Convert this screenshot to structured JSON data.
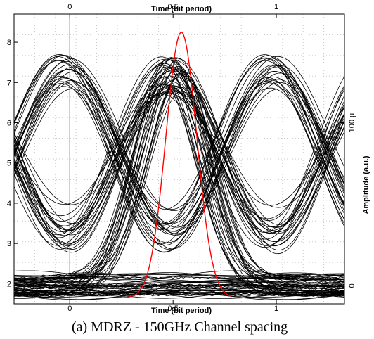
{
  "caption": "(a) MDRZ - 150GHz Channel spacing",
  "chart_data": {
    "type": "line",
    "chart_kind": "eye-diagram",
    "title": "",
    "top_xlabel": "Time (bit period)",
    "bottom_xlabel": "Time (bit period)",
    "left_ylabel": "",
    "right_ylabel": "Amplitude (a.u.)",
    "xlim": [
      -0.27,
      1.33
    ],
    "left_ylim": [
      1.5,
      8.7
    ],
    "x_ticks": [
      {
        "value": 0,
        "label": "0"
      },
      {
        "value": 0.5,
        "label": "0.5"
      },
      {
        "value": 1,
        "label": "1"
      }
    ],
    "left_y_ticks": [
      {
        "value": 2,
        "label": "2"
      },
      {
        "value": 3,
        "label": "3"
      },
      {
        "value": 4,
        "label": "4"
      },
      {
        "value": 5,
        "label": "5"
      },
      {
        "value": 6,
        "label": "6"
      },
      {
        "value": 7,
        "label": "7"
      },
      {
        "value": 8,
        "label": "8"
      }
    ],
    "right_y_ticks": [
      {
        "value": 1.95,
        "label": "0"
      },
      {
        "value": 6.0,
        "label": "100 µ"
      }
    ],
    "grid": true,
    "trace_levels": {
      "high_level": 7.2,
      "low_level": 1.95,
      "crossing_times": [
        -0.02,
        0.98
      ]
    },
    "gaussian_pulse": {
      "color": "#ff0000",
      "center": 0.54,
      "sigma": 0.075,
      "baseline": 1.65,
      "peak": 8.25,
      "x_range": [
        0.24,
        0.78
      ]
    },
    "trace_color": "#000000"
  }
}
